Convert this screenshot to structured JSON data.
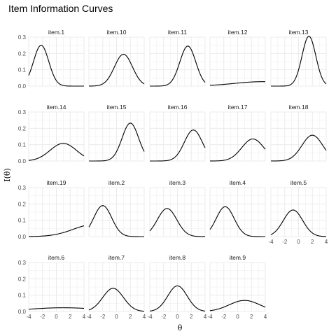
{
  "chart_data": {
    "type": "line",
    "title": "Item Information Curves",
    "xlabel": "θ",
    "ylabel": "I(θ)",
    "xlim": [
      -4,
      4
    ],
    "ylim": [
      0,
      0.3
    ],
    "x_ticks": [
      -4,
      -2,
      0,
      2,
      4
    ],
    "y_ticks": [
      0.0,
      0.1,
      0.2,
      0.3
    ],
    "y_tick_labels": [
      "0.0",
      "0.1",
      "0.2",
      "0.3"
    ],
    "grid": true,
    "line_color": "#000000",
    "grid_color": "#ebebeb",
    "facets": [
      {
        "label": "item.1",
        "peak_theta": -2.2,
        "peak_info": 0.25,
        "spread": 1.1
      },
      {
        "label": "item.10",
        "peak_theta": 1.0,
        "peak_info": 0.195,
        "spread": 1.3
      },
      {
        "label": "item.11",
        "peak_theta": 1.5,
        "peak_info": 0.245,
        "spread": 1.15
      },
      {
        "label": "item.12",
        "peak_theta": 3.5,
        "peak_info": 0.027,
        "spread": 4.0
      },
      {
        "label": "item.13",
        "peak_theta": 1.5,
        "peak_info": 0.305,
        "spread": 1.0
      },
      {
        "label": "item.14",
        "peak_theta": 1.0,
        "peak_info": 0.108,
        "spread": 1.9
      },
      {
        "label": "item.15",
        "peak_theta": 2.0,
        "peak_info": 0.232,
        "spread": 1.2
      },
      {
        "label": "item.16",
        "peak_theta": 2.3,
        "peak_info": 0.19,
        "spread": 1.3
      },
      {
        "label": "item.17",
        "peak_theta": 2.2,
        "peak_info": 0.135,
        "spread": 1.6
      },
      {
        "label": "item.18",
        "peak_theta": 2.0,
        "peak_info": 0.158,
        "spread": 1.5
      },
      {
        "label": "item.19",
        "peak_theta": 5.5,
        "peak_info": 0.075,
        "spread": 3.0
      },
      {
        "label": "item.2",
        "peak_theta": -2.0,
        "peak_info": 0.19,
        "spread": 1.3
      },
      {
        "label": "item.3",
        "peak_theta": -1.5,
        "peak_info": 0.172,
        "spread": 1.4
      },
      {
        "label": "item.4",
        "peak_theta": -1.8,
        "peak_info": 0.183,
        "spread": 1.3
      },
      {
        "label": "item.5",
        "peak_theta": -0.8,
        "peak_info": 0.163,
        "spread": 1.4
      },
      {
        "label": "item.6",
        "peak_theta": 1.0,
        "peak_info": 0.023,
        "spread": 5.0
      },
      {
        "label": "item.7",
        "peak_theta": -0.5,
        "peak_info": 0.142,
        "spread": 1.5
      },
      {
        "label": "item.8",
        "peak_theta": 0.0,
        "peak_info": 0.157,
        "spread": 1.4
      },
      {
        "label": "item.9",
        "peak_theta": 1.0,
        "peak_info": 0.068,
        "spread": 2.2
      }
    ]
  }
}
